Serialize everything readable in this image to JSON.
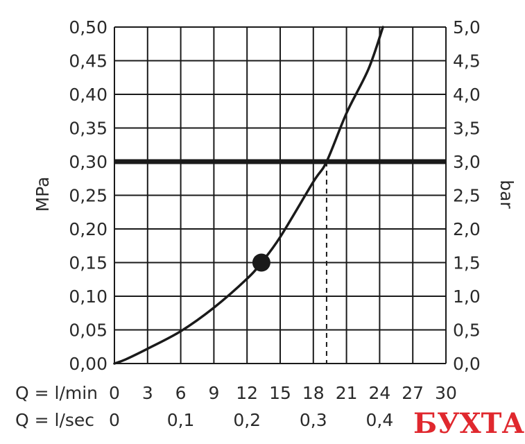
{
  "chart_data": {
    "type": "line",
    "y_left": {
      "label": "MPa",
      "range": [
        0,
        0.5
      ],
      "ticks": [
        "0,00",
        "0,05",
        "0,10",
        "0,15",
        "0,20",
        "0,25",
        "0,30",
        "0,35",
        "0,40",
        "0,45",
        "0,50"
      ]
    },
    "y_right": {
      "label": "bar",
      "range": [
        0,
        5.0
      ],
      "ticks": [
        "0,0",
        "0,5",
        "1,0",
        "1,5",
        "2,0",
        "2,5",
        "3,0",
        "3,5",
        "4,0",
        "4,5",
        "5,0"
      ]
    },
    "x_lmin": {
      "prefix": "Q = l/min",
      "range": [
        0,
        30
      ],
      "ticks": [
        "0",
        "3",
        "6",
        "9",
        "12",
        "15",
        "18",
        "21",
        "24",
        "27",
        "30"
      ]
    },
    "x_lsec": {
      "prefix": "Q = l/sec",
      "ticks": [
        {
          "label": "0",
          "x": 0
        },
        {
          "label": "0,1",
          "x": 6
        },
        {
          "label": "0,2",
          "x": 12
        },
        {
          "label": "0,3",
          "x": 18
        },
        {
          "label": "0,4",
          "x": 24
        }
      ]
    },
    "grid": true,
    "series": [
      {
        "points": [
          [
            0,
            0
          ],
          [
            1,
            0.006
          ],
          [
            3,
            0.022
          ],
          [
            6,
            0.048
          ],
          [
            9,
            0.083
          ],
          [
            12,
            0.126
          ],
          [
            13.3,
            0.15
          ],
          [
            15,
            0.188
          ],
          [
            18,
            0.27
          ],
          [
            19.2,
            0.3
          ],
          [
            21,
            0.372
          ],
          [
            23,
            0.438
          ],
          [
            24.3,
            0.5
          ]
        ]
      }
    ],
    "reference_line": {
      "y": 0.3
    },
    "drop_line": {
      "x": 19.2,
      "from_y": 0.3,
      "to_y": 0
    },
    "marker": {
      "x": 13.3,
      "y": 0.15
    }
  },
  "watermark": {
    "text": "БУХТА",
    "color": "#e0282e"
  }
}
